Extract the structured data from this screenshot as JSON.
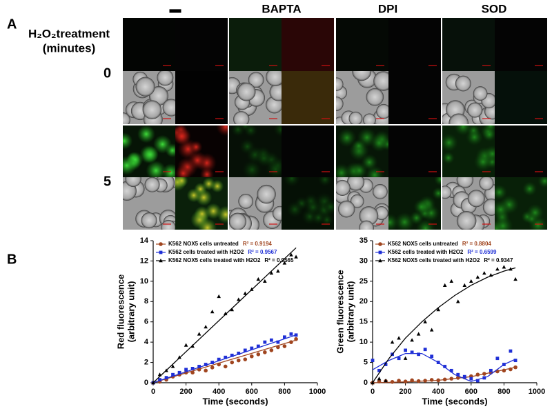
{
  "panel_a": {
    "label": "A",
    "treatment_label": [
      "H₂O₂treatment",
      "(minutes)"
    ],
    "columns": [
      "▬",
      "BAPTA",
      "DPI",
      "SOD"
    ],
    "rows": [
      "0",
      "5"
    ]
  },
  "panel_b": {
    "label": "B"
  },
  "chart_data": [
    {
      "type": "scatter",
      "x_label": "Time (seconds)",
      "y_label": [
        "Red fluorescence",
        "(arbitrary unit)"
      ],
      "xlim": [
        0,
        1000
      ],
      "xticks": [
        0,
        200,
        400,
        600,
        800,
        1000
      ],
      "ylim": [
        0,
        14
      ],
      "yticks": [
        0,
        2,
        4,
        6,
        8,
        10,
        12,
        14
      ],
      "x": [
        0,
        40,
        80,
        120,
        160,
        200,
        240,
        280,
        320,
        360,
        400,
        440,
        480,
        520,
        560,
        600,
        640,
        680,
        720,
        760,
        800,
        840,
        870
      ],
      "series": [
        {
          "name": "K562 NOX5 cells untreated",
          "r2_label": "R² = 0.9194",
          "color": "#a0451f",
          "marker": "circle",
          "values": [
            0,
            0.1,
            0.3,
            0.6,
            0.8,
            1.0,
            1.0,
            1.3,
            1.2,
            1.5,
            1.8,
            1.6,
            2.0,
            2.2,
            2.3,
            2.6,
            2.8,
            3.0,
            3.2,
            3.5,
            3.6,
            4.0,
            4.3
          ],
          "fit_x": [
            0,
            870
          ],
          "fit_values": [
            0,
            4.2
          ]
        },
        {
          "name": "K562 cells treated with H2O2",
          "r2_label": "R² = 0.9567",
          "color": "#1f2fd6",
          "marker": "square",
          "values": [
            0,
            0.3,
            0.5,
            0.8,
            1.0,
            1.3,
            1.4,
            1.6,
            1.8,
            2.0,
            2.3,
            2.5,
            2.7,
            2.9,
            3.2,
            3.4,
            3.6,
            4.0,
            4.2,
            4.0,
            4.5,
            4.8,
            4.7
          ],
          "fit_x": [
            0,
            870
          ],
          "fit_values": [
            0,
            4.7
          ]
        },
        {
          "name": "K562 NOX5 cells treated with H2O2",
          "r2_label": "R² = 0.9565",
          "color": "#000000",
          "marker": "triangle",
          "values": [
            0,
            0.8,
            1.2,
            1.6,
            2.5,
            3.7,
            3.6,
            4.8,
            5.5,
            7.0,
            8.5,
            6.8,
            7.2,
            8.2,
            8.8,
            9.2,
            10.2,
            10.0,
            10.8,
            11.0,
            11.8,
            12.6,
            12.4
          ],
          "fit_x": [
            0,
            870
          ],
          "fit_values": [
            0,
            13.3
          ]
        }
      ]
    },
    {
      "type": "scatter",
      "x_label": "Time (seconds)",
      "y_label": [
        "Green fluorescence",
        "(arbitrary unit)"
      ],
      "xlim": [
        0,
        1000
      ],
      "xticks": [
        0,
        200,
        400,
        600,
        800,
        1000
      ],
      "ylim": [
        0,
        35
      ],
      "yticks": [
        0,
        5,
        10,
        15,
        20,
        25,
        30,
        35
      ],
      "x": [
        0,
        40,
        80,
        120,
        160,
        200,
        240,
        280,
        320,
        360,
        400,
        440,
        480,
        520,
        560,
        600,
        640,
        680,
        720,
        760,
        800,
        840,
        870
      ],
      "series": [
        {
          "name": "K562 NOX5 cells untreated",
          "r2_label": "R² = 0.8804",
          "color": "#a0451f",
          "marker": "circle",
          "values": [
            0,
            0.3,
            0.4,
            0.2,
            0.5,
            0.3,
            0.6,
            0.4,
            0.5,
            0.7,
            0.6,
            0.8,
            1.0,
            1.2,
            1.3,
            1.6,
            2.0,
            2.2,
            2.5,
            2.8,
            3.0,
            3.3,
            3.8
          ],
          "fit_x": [
            0,
            200,
            400,
            600,
            800,
            870
          ],
          "fit_values": [
            0,
            0.2,
            0.6,
            1.5,
            3.2,
            3.8
          ]
        },
        {
          "name": "K562 cells treated with H2O2",
          "r2_label": "R² = 0.6599",
          "color": "#1f2fd6",
          "marker": "square",
          "values": [
            5.5,
            3.0,
            4.5,
            7.0,
            6.0,
            8.0,
            7.5,
            7.0,
            8.2,
            6.5,
            5.0,
            4.0,
            3.0,
            2.0,
            1.5,
            1.0,
            0.5,
            1.2,
            3.0,
            6.0,
            4.5,
            7.8,
            5.5
          ],
          "fit_x": [
            0,
            100,
            200,
            300,
            400,
            500,
            600,
            700,
            800,
            870
          ],
          "fit_values": [
            3.2,
            5.5,
            7.2,
            7.2,
            5.0,
            2.0,
            0.3,
            1.5,
            4.5,
            5.8
          ]
        },
        {
          "name": "K562 NOX5 cells treated with H2O2",
          "r2_label": "R² = 0.9347",
          "color": "#000000",
          "marker": "triangle",
          "values": [
            0,
            1.0,
            0.5,
            10.0,
            11.0,
            6.0,
            10.5,
            12.0,
            15.0,
            13.0,
            18.0,
            24.0,
            25.0,
            20.0,
            24.0,
            25.0,
            26.0,
            27.0,
            26.5,
            28.0,
            28.5,
            28.0,
            25.5
          ],
          "fit_x": [
            0,
            100,
            200,
            300,
            400,
            500,
            600,
            700,
            800,
            870
          ],
          "fit_values": [
            0,
            6,
            11,
            15,
            18.5,
            21.5,
            24,
            26,
            27.5,
            28.3
          ]
        }
      ]
    }
  ]
}
